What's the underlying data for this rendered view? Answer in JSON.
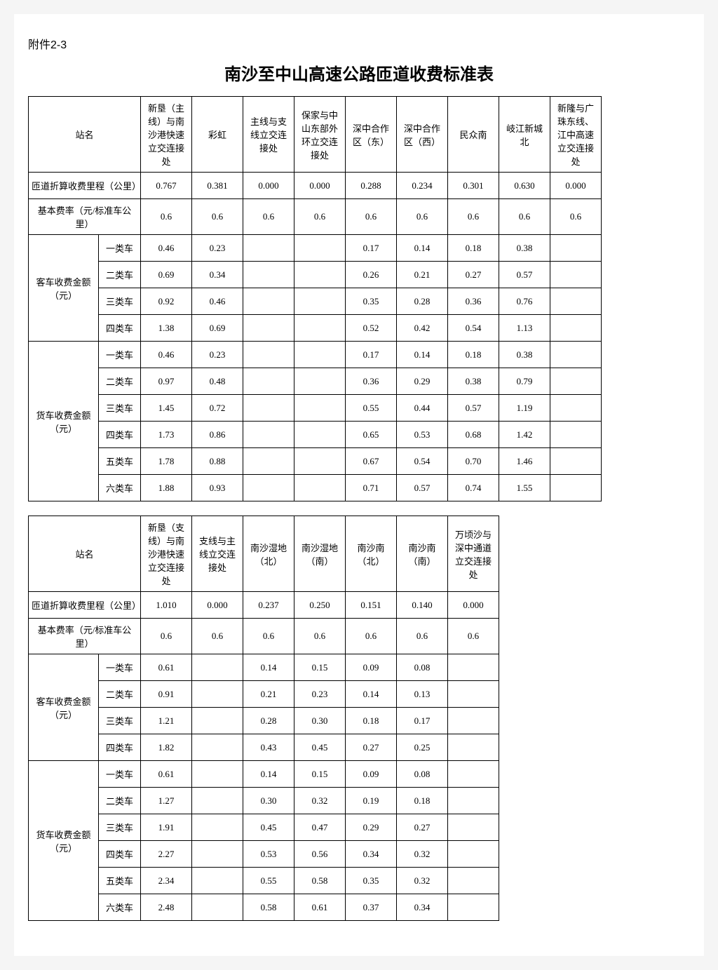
{
  "attachment": "附件2-3",
  "title": "南沙至中山高速公路匝道收费标准表",
  "row_labels": {
    "station": "站名",
    "mileage": "匝道折算收费里程（公里）",
    "base_rate": "基本费率（元/标准车公里）",
    "passenger": "客车收费金额（元）",
    "truck": "货车收费金额（元）",
    "c1": "一类车",
    "c2": "二类车",
    "c3": "三类车",
    "c4": "四类车",
    "c5": "五类车",
    "c6": "六类车"
  },
  "table1": {
    "stations": [
      "新垦（主线）与南沙港快速立交连接处",
      "彩虹",
      "主线与支线立交连接处",
      "保家与中山东部外环立交连接处",
      "深中合作区（东）",
      "深中合作区（西）",
      "民众南",
      "岐江新城北",
      "新隆与广珠东线、江中高速立交连接处"
    ],
    "mileage": [
      "0.767",
      "0.381",
      "0.000",
      "0.000",
      "0.288",
      "0.234",
      "0.301",
      "0.630",
      "0.000"
    ],
    "base_rate": [
      "0.6",
      "0.6",
      "0.6",
      "0.6",
      "0.6",
      "0.6",
      "0.6",
      "0.6",
      "0.6"
    ],
    "passenger": {
      "c1": [
        "0.46",
        "0.23",
        "",
        "",
        "0.17",
        "0.14",
        "0.18",
        "0.38",
        ""
      ],
      "c2": [
        "0.69",
        "0.34",
        "",
        "",
        "0.26",
        "0.21",
        "0.27",
        "0.57",
        ""
      ],
      "c3": [
        "0.92",
        "0.46",
        "",
        "",
        "0.35",
        "0.28",
        "0.36",
        "0.76",
        ""
      ],
      "c4": [
        "1.38",
        "0.69",
        "",
        "",
        "0.52",
        "0.42",
        "0.54",
        "1.13",
        ""
      ]
    },
    "truck": {
      "c1": [
        "0.46",
        "0.23",
        "",
        "",
        "0.17",
        "0.14",
        "0.18",
        "0.38",
        ""
      ],
      "c2": [
        "0.97",
        "0.48",
        "",
        "",
        "0.36",
        "0.29",
        "0.38",
        "0.79",
        ""
      ],
      "c3": [
        "1.45",
        "0.72",
        "",
        "",
        "0.55",
        "0.44",
        "0.57",
        "1.19",
        ""
      ],
      "c4": [
        "1.73",
        "0.86",
        "",
        "",
        "0.65",
        "0.53",
        "0.68",
        "1.42",
        ""
      ],
      "c5": [
        "1.78",
        "0.88",
        "",
        "",
        "0.67",
        "0.54",
        "0.70",
        "1.46",
        ""
      ],
      "c6": [
        "1.88",
        "0.93",
        "",
        "",
        "0.71",
        "0.57",
        "0.74",
        "1.55",
        ""
      ]
    }
  },
  "table2": {
    "stations": [
      "新垦（支线）与南沙港快速立交连接处",
      "支线与主线立交连接处",
      "南沙湿地（北）",
      "南沙湿地（南）",
      "南沙南（北）",
      "南沙南（南）",
      "万顷沙与深中通道立交连接处"
    ],
    "mileage": [
      "1.010",
      "0.000",
      "0.237",
      "0.250",
      "0.151",
      "0.140",
      "0.000"
    ],
    "base_rate": [
      "0.6",
      "0.6",
      "0.6",
      "0.6",
      "0.6",
      "0.6",
      "0.6"
    ],
    "passenger": {
      "c1": [
        "0.61",
        "",
        "0.14",
        "0.15",
        "0.09",
        "0.08",
        ""
      ],
      "c2": [
        "0.91",
        "",
        "0.21",
        "0.23",
        "0.14",
        "0.13",
        ""
      ],
      "c3": [
        "1.21",
        "",
        "0.28",
        "0.30",
        "0.18",
        "0.17",
        ""
      ],
      "c4": [
        "1.82",
        "",
        "0.43",
        "0.45",
        "0.27",
        "0.25",
        ""
      ]
    },
    "truck": {
      "c1": [
        "0.61",
        "",
        "0.14",
        "0.15",
        "0.09",
        "0.08",
        ""
      ],
      "c2": [
        "1.27",
        "",
        "0.30",
        "0.32",
        "0.19",
        "0.18",
        ""
      ],
      "c3": [
        "1.91",
        "",
        "0.45",
        "0.47",
        "0.29",
        "0.27",
        ""
      ],
      "c4": [
        "2.27",
        "",
        "0.53",
        "0.56",
        "0.34",
        "0.32",
        ""
      ],
      "c5": [
        "2.34",
        "",
        "0.55",
        "0.58",
        "0.35",
        "0.32",
        ""
      ],
      "c6": [
        "2.48",
        "",
        "0.58",
        "0.61",
        "0.37",
        "0.34",
        ""
      ]
    }
  },
  "style": {
    "border_color": "#000000",
    "background": "#ffffff",
    "font_size_body": 13,
    "font_size_title": 24
  }
}
